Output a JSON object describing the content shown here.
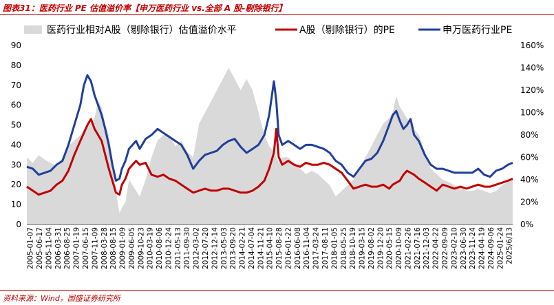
{
  "header": {
    "title": "图表31：医药行业 PE 估值溢价率【申万医药行业 vs.全部 A 股-剔除银行】"
  },
  "footer": {
    "source": "资料来源：Wind，国盛证券研究所"
  },
  "colors": {
    "premium_area": "#d9d9d9",
    "a_share_pe": "#c00000",
    "pharma_pe": "#1f3f99",
    "accent": "#c00000"
  },
  "chart_data": {
    "type": "line",
    "title": "",
    "legend": [
      {
        "name": "医药行业相对A股（剔除银行）估值溢价水平",
        "kind": "area",
        "axis": "right"
      },
      {
        "name": "A股（剔除银行）的PE",
        "kind": "line",
        "axis": "left"
      },
      {
        "name": "申万医药行业PE",
        "kind": "line",
        "axis": "left"
      }
    ],
    "legend_position": "top",
    "y_left": {
      "min": 0,
      "max": 90,
      "ticks": [
        "0",
        "10",
        "20",
        "30",
        "40",
        "50",
        "60",
        "70",
        "80",
        "90"
      ]
    },
    "y_right": {
      "min": 0,
      "max": 160,
      "ticks": [
        "0%",
        "20%",
        "40%",
        "60%",
        "80%",
        "100%",
        "120%",
        "140%",
        "160%"
      ]
    },
    "x_tick_labels": [
      "2005-01-07",
      "2005-06-17",
      "2005-11-04",
      "2006-03-31",
      "2006-08-25",
      "2007-01-19",
      "2007-06-15",
      "2007-11-09",
      "2008-03-28",
      "2008-08-15",
      "2009-01-09",
      "2009-06-05",
      "2009-10-23",
      "2010-03-19",
      "2010-08-06",
      "2010-12-24",
      "2011-05-13",
      "2011-09-30",
      "2012-03-02",
      "2012-07-20",
      "2012-12-14",
      "2013-05-03",
      "2013-09-20",
      "2014-02-21",
      "2014-07-04",
      "2014-11-21",
      "2015-04-10",
      "2015-08-28",
      "2016-01-22",
      "2016-06-08",
      "2016-11-04",
      "2017-03-24",
      "2017-08-11",
      "2018-01-05",
      "2018-05-25",
      "2018-10-19",
      "2019-03-15",
      "2019-08-02",
      "2019-12-20",
      "2020-05-15",
      "2020-10-09",
      "2021-02-26",
      "2021-07-16",
      "2021-12-03",
      "2022-04-22",
      "2022-09-09",
      "2023-02-10",
      "2023-06-30",
      "2023-11-24",
      "2024-04-19",
      "2024-09-06",
      "2025-01-24",
      "2025/6/13"
    ],
    "x": [
      2005.0,
      2005.25,
      2005.5,
      2005.75,
      2006.0,
      2006.25,
      2006.5,
      2006.75,
      2007.0,
      2007.25,
      2007.4,
      2007.55,
      2007.7,
      2007.85,
      2008.0,
      2008.15,
      2008.3,
      2008.45,
      2008.6,
      2008.75,
      2008.9,
      2009.0,
      2009.15,
      2009.3,
      2009.45,
      2009.6,
      2009.75,
      2010.0,
      2010.25,
      2010.5,
      2010.75,
      2011.0,
      2011.25,
      2011.5,
      2011.75,
      2012.0,
      2012.25,
      2012.5,
      2012.75,
      2013.0,
      2013.25,
      2013.5,
      2013.75,
      2014.0,
      2014.25,
      2014.5,
      2014.75,
      2015.0,
      2015.2,
      2015.4,
      2015.5,
      2015.6,
      2015.75,
      2016.0,
      2016.25,
      2016.5,
      2016.75,
      2017.0,
      2017.25,
      2017.5,
      2017.75,
      2018.0,
      2018.25,
      2018.5,
      2018.75,
      2019.0,
      2019.25,
      2019.5,
      2019.75,
      2020.0,
      2020.25,
      2020.4,
      2020.55,
      2020.7,
      2020.85,
      2021.0,
      2021.15,
      2021.3,
      2021.5,
      2021.75,
      2022.0,
      2022.25,
      2022.5,
      2022.75,
      2023.0,
      2023.25,
      2023.5,
      2023.75,
      2024.0,
      2024.25,
      2024.5,
      2024.75,
      2025.0,
      2025.25,
      2025.45
    ],
    "series": [
      {
        "name": "医药行业相对A股（剔除银行）估值溢价水平",
        "axis": "right",
        "values": [
          60,
          55,
          62,
          58,
          55,
          52,
          60,
          70,
          75,
          80,
          85,
          88,
          90,
          95,
          110,
          105,
          90,
          80,
          60,
          30,
          10,
          15,
          20,
          40,
          35,
          30,
          25,
          40,
          60,
          75,
          80,
          80,
          70,
          75,
          65,
          60,
          90,
          100,
          110,
          120,
          130,
          140,
          130,
          120,
          130,
          120,
          100,
          80,
          70,
          65,
          60,
          55,
          60,
          60,
          55,
          50,
          45,
          48,
          45,
          40,
          35,
          25,
          30,
          35,
          40,
          50,
          60,
          70,
          80,
          90,
          95,
          100,
          115,
          105,
          100,
          95,
          90,
          85,
          80,
          65,
          50,
          45,
          40,
          38,
          35,
          33,
          30,
          30,
          32,
          30,
          28,
          30,
          35,
          38,
          40
        ]
      },
      {
        "name": "A股（剔除银行）的PE",
        "axis": "left",
        "values": [
          19,
          17,
          15,
          16,
          17,
          20,
          22,
          27,
          35,
          42,
          46,
          50,
          53,
          48,
          45,
          42,
          35,
          28,
          22,
          16,
          15,
          20,
          23,
          28,
          30,
          32,
          30,
          31,
          25,
          24,
          25,
          23,
          22,
          20,
          18,
          16,
          17,
          18,
          17,
          17,
          18,
          18,
          17,
          16,
          16,
          17,
          19,
          22,
          28,
          36,
          48,
          34,
          30,
          32,
          30,
          29,
          31,
          30,
          30,
          31,
          30,
          28,
          26,
          22,
          18,
          19,
          20,
          19,
          19,
          20,
          18,
          20,
          21,
          22,
          25,
          27,
          26,
          25,
          23,
          21,
          19,
          17,
          20,
          19,
          18,
          19,
          18,
          19,
          20,
          19,
          19,
          20,
          21,
          22,
          23
        ]
      },
      {
        "name": "申万医药行业PE",
        "axis": "left",
        "values": [
          29,
          28,
          25,
          26,
          27,
          30,
          32,
          40,
          50,
          60,
          70,
          75,
          72,
          65,
          60,
          55,
          48,
          40,
          30,
          22,
          23,
          28,
          32,
          38,
          40,
          42,
          38,
          43,
          45,
          48,
          46,
          44,
          42,
          40,
          35,
          28,
          32,
          35,
          36,
          37,
          40,
          42,
          43,
          39,
          36,
          38,
          40,
          45,
          55,
          72,
          62,
          45,
          40,
          42,
          40,
          38,
          40,
          40,
          39,
          38,
          36,
          32,
          30,
          26,
          24,
          28,
          32,
          33,
          36,
          42,
          50,
          55,
          57,
          52,
          48,
          50,
          53,
          45,
          42,
          35,
          30,
          28,
          28,
          27,
          26,
          26,
          26,
          26,
          28,
          25,
          24,
          27,
          28,
          30,
          31
        ]
      }
    ]
  }
}
